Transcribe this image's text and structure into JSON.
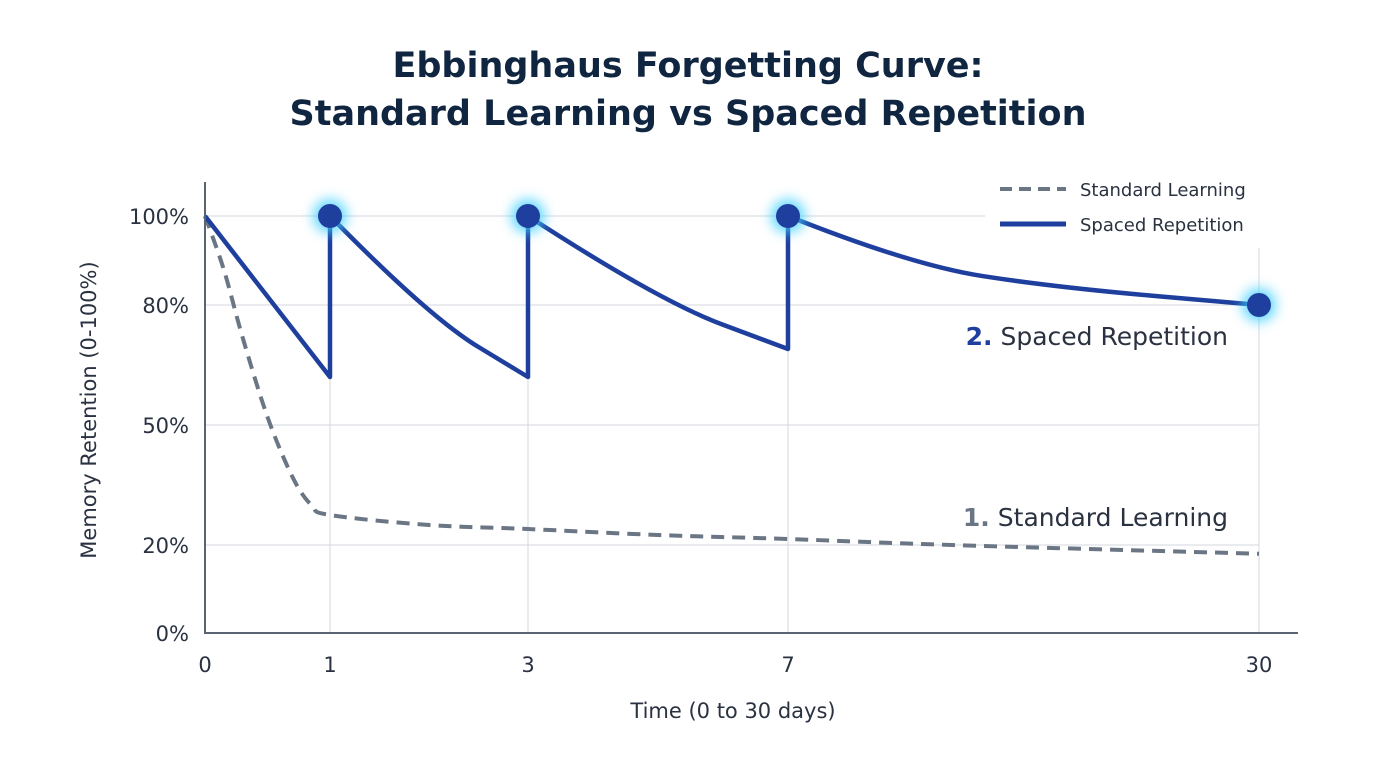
{
  "chart_data": {
    "type": "line",
    "title_line1": "Ebbinghaus Forgetting Curve:",
    "title_line2": "Standard Learning vs Spaced Repetition",
    "xlabel": "Time (0 to 30 days)",
    "ylabel": "Memory Retention (0-100%)",
    "x_ticks": [
      0,
      1,
      3,
      7,
      30
    ],
    "x_tick_labels": [
      "0",
      "1",
      "3",
      "7",
      "30"
    ],
    "y_ticks": [
      0,
      20,
      50,
      80,
      100
    ],
    "y_tick_labels": [
      "0%",
      "20%",
      "50%",
      "80%",
      "100%"
    ],
    "ylim": [
      0,
      100
    ],
    "xlim": [
      0,
      30
    ],
    "grid": true,
    "legend_position": "top-right",
    "series": [
      {
        "name": "Standard Learning",
        "style": "dashed",
        "color": "#6b7685",
        "points": [
          [
            0,
            100
          ],
          [
            0.15,
            88
          ],
          [
            0.3,
            72
          ],
          [
            0.5,
            52
          ],
          [
            0.7,
            37
          ],
          [
            0.85,
            30
          ],
          [
            1,
            27.5
          ],
          [
            2,
            25
          ],
          [
            3,
            24
          ],
          [
            5,
            22.5
          ],
          [
            7,
            21.5
          ],
          [
            15,
            20
          ],
          [
            30,
            18
          ]
        ]
      },
      {
        "name": "Spaced Repetition",
        "style": "solid",
        "color": "#1e3f9e",
        "points": [
          [
            0,
            100
          ],
          [
            1,
            62
          ],
          [
            1,
            100
          ],
          [
            2,
            77
          ],
          [
            3,
            62
          ],
          [
            3,
            100
          ],
          [
            5,
            81
          ],
          [
            7,
            69
          ],
          [
            7,
            100
          ],
          [
            13,
            89
          ],
          [
            20,
            84
          ],
          [
            30,
            80
          ]
        ]
      }
    ],
    "review_markers": [
      [
        1,
        100
      ],
      [
        3,
        100
      ],
      [
        7,
        100
      ],
      [
        30,
        80
      ]
    ],
    "annotations": [
      {
        "number": "1.",
        "text": "Standard Learning",
        "series": "Standard Learning"
      },
      {
        "number": "2.",
        "text": "Spaced Repetition",
        "series": "Spaced Repetition"
      }
    ]
  }
}
